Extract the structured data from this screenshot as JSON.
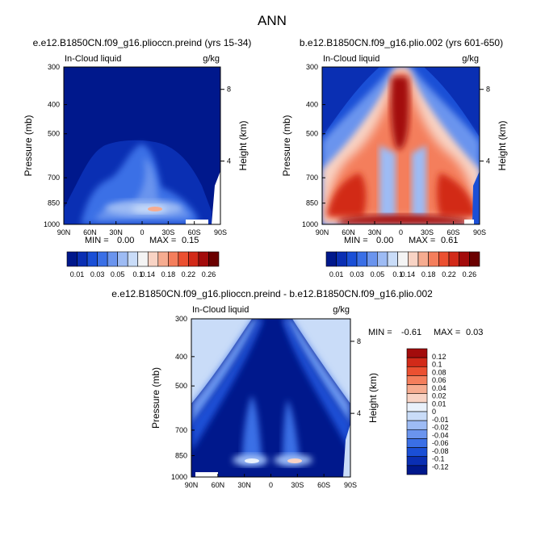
{
  "page_title": "ANN",
  "colors": {
    "scale": [
      "#00188c",
      "#0a2fb3",
      "#1a4fd6",
      "#3a6fe6",
      "#6a94ee",
      "#9dbbf4",
      "#c9dcf8",
      "#f4f4f4",
      "#f8d3c4",
      "#f6ac90",
      "#f47e5c",
      "#eb5031",
      "#d22a19",
      "#a30c0c",
      "#6b0000"
    ],
    "diff_scale": [
      "#00188c",
      "#0a2fb3",
      "#1a4fd6",
      "#3a6fe6",
      "#6a94ee",
      "#9dbbf4",
      "#c9dcf8",
      "#e9f1fb",
      "#f8d3c4",
      "#f6ac90",
      "#f47e5c",
      "#eb5031",
      "#d22a19",
      "#a30c0c"
    ]
  },
  "chart_data": [
    {
      "type": "heatmap",
      "title": "e.e12.B1850CN.f09_g16.plioccn.preind (yrs 15-34)",
      "variable": "In-Cloud liquid",
      "units": "g/kg",
      "ylabel": "Pressure (mb)",
      "ylabel_right": "Height (km)",
      "x_ticks": [
        "90N",
        "60N",
        "30N",
        "0",
        "30S",
        "60S",
        "90S"
      ],
      "y_ticks": [
        "300",
        "400",
        "500",
        "700",
        "850",
        "1000"
      ],
      "height_ticks": [
        "8",
        "4"
      ],
      "stats": {
        "min_label": "MIN =",
        "min": "0.00",
        "max_label": "MAX =",
        "max": "0.15"
      },
      "colorbar_labels": [
        "0.01",
        "0.03",
        "0.05",
        "0.1",
        "0.14",
        "0.18",
        "0.22",
        "0.26"
      ],
      "features": [
        {
          "lat": 10,
          "p": 860,
          "value": 0.14
        },
        {
          "lat": 20,
          "p": 700,
          "value": 0.06
        },
        {
          "lat": -10,
          "p": 640,
          "value": 0.05
        }
      ]
    },
    {
      "type": "heatmap",
      "title": "b.e12.B1850CN.f09_g16.plio.002 (yrs 601-650)",
      "variable": "In-Cloud liquid",
      "units": "g/kg",
      "ylabel": "Pressure (mb)",
      "ylabel_right": "Height (km)",
      "x_ticks": [
        "90N",
        "60N",
        "30N",
        "0",
        "30S",
        "60S",
        "90S"
      ],
      "y_ticks": [
        "300",
        "400",
        "500",
        "700",
        "850",
        "1000"
      ],
      "height_ticks": [
        "8",
        "4"
      ],
      "stats": {
        "min_label": "MIN =",
        "min": "0.00",
        "max_label": "MAX =",
        "max": "0.61"
      },
      "colorbar_labels": [
        "0.01",
        "0.03",
        "0.05",
        "0.1",
        "0.14",
        "0.18",
        "0.22",
        "0.26"
      ],
      "features": [
        {
          "lat": 0,
          "p": 450,
          "value": 0.3
        },
        {
          "lat": -45,
          "p": 800,
          "value": 0.26
        },
        {
          "lat": 55,
          "p": 800,
          "value": 0.26
        }
      ]
    },
    {
      "type": "heatmap",
      "title": "e.e12.B1850CN.f09_g16.plioccn.preind - b.e12.B1850CN.f09_g16.plio.002",
      "variable": "In-Cloud liquid",
      "units": "g/kg",
      "ylabel": "Pressure (mb)",
      "ylabel_right": "Height (km)",
      "x_ticks": [
        "90N",
        "60N",
        "30N",
        "0",
        "30S",
        "60S",
        "90S"
      ],
      "y_ticks": [
        "300",
        "400",
        "500",
        "700",
        "850",
        "1000"
      ],
      "height_ticks": [
        "8",
        "4"
      ],
      "stats": {
        "min_label": "MIN =",
        "min": "-0.61",
        "max_label": "MAX =",
        "max": "0.03"
      },
      "colorbar_labels": [
        "0.12",
        "0.1",
        "0.08",
        "0.06",
        "0.04",
        "0.02",
        "0.01",
        "0",
        "-0.01",
        "-0.02",
        "-0.04",
        "-0.06",
        "-0.08",
        "-0.1",
        "-0.12"
      ],
      "features": [
        {
          "lat": 25,
          "p": 860,
          "value": 0.01
        },
        {
          "lat": -25,
          "p": 860,
          "value": 0.01
        }
      ]
    }
  ]
}
